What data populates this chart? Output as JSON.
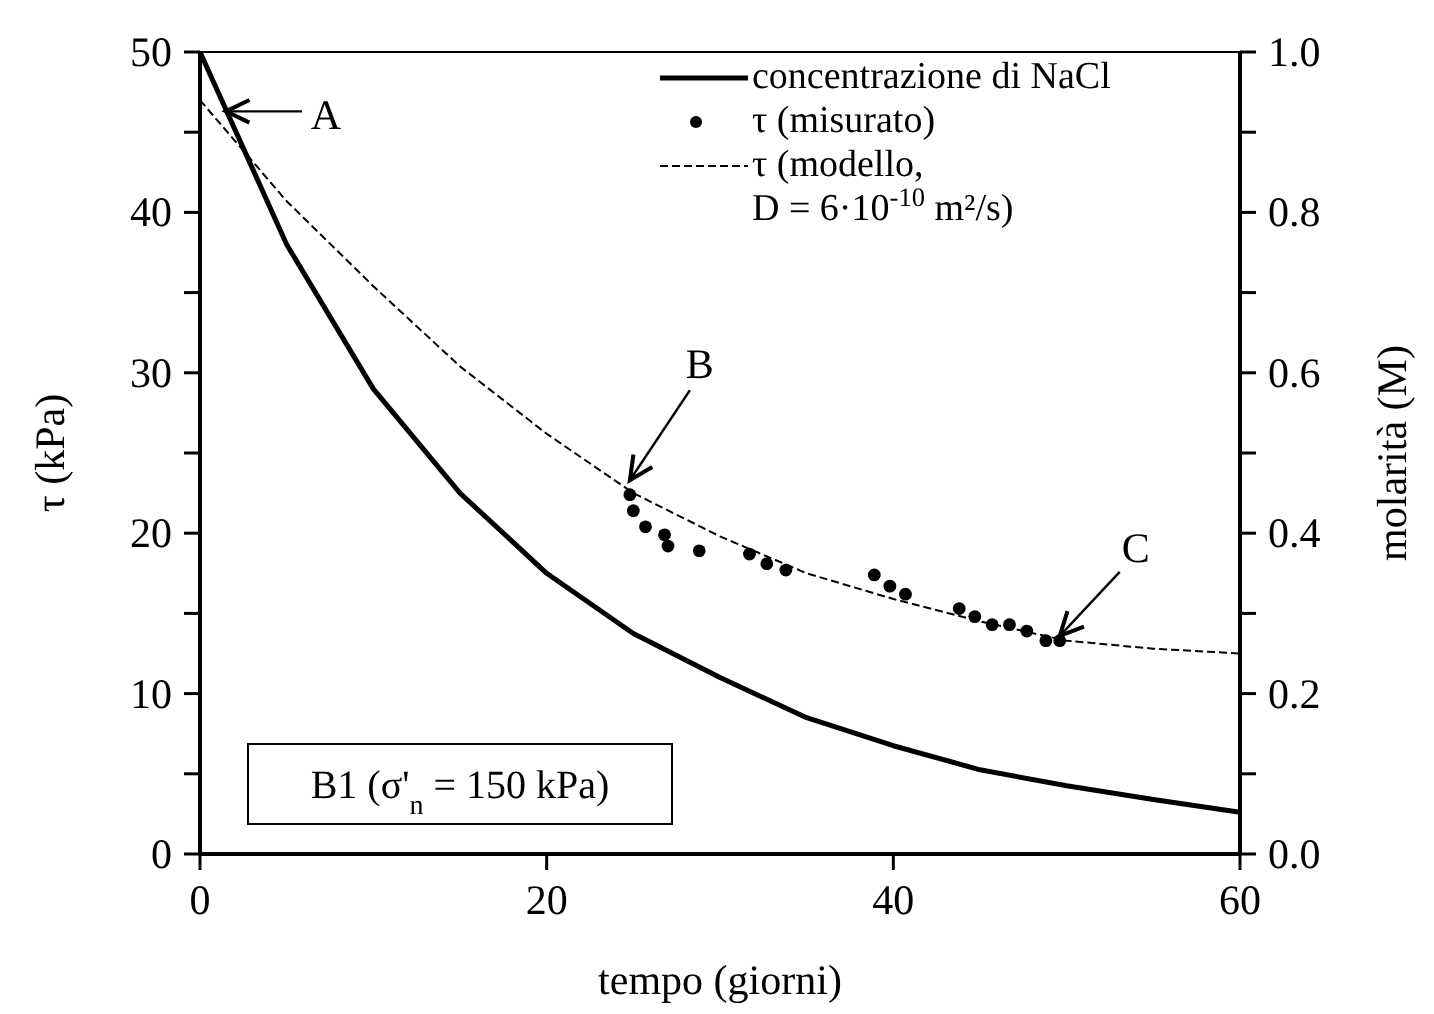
{
  "chart_data": {
    "type": "line",
    "xlabel": "tempo (giorni)",
    "ylabel": "τ (kPa)",
    "y2label": "molarità (M)",
    "xlim": [
      0,
      60
    ],
    "xticks": [
      0,
      20,
      40,
      60
    ],
    "ylim": [
      0,
      50
    ],
    "yticks": [
      0,
      {
        "value": 5,
        "label": null
      },
      10,
      {
        "value": 15,
        "label": null
      },
      20,
      {
        "value": 25,
        "label": null
      },
      30,
      {
        "value": 35,
        "label": null
      },
      40,
      {
        "value": 45,
        "label": null
      },
      50
    ],
    "y2lim": [
      0,
      1
    ],
    "y2ticks": [
      {
        "value": 0,
        "label": "0.0"
      },
      {
        "value": 0.1,
        "label": null
      },
      {
        "value": 0.2,
        "label": "0.2"
      },
      {
        "value": 0.3,
        "label": null
      },
      {
        "value": 0.4,
        "label": "0.4"
      },
      {
        "value": 0.5,
        "label": null
      },
      {
        "value": 0.6,
        "label": "0.6"
      },
      {
        "value": 0.7,
        "label": null
      },
      {
        "value": 0.8,
        "label": "0.8"
      },
      {
        "value": 0.9,
        "label": null
      },
      {
        "value": 1,
        "label": "1.0"
      }
    ],
    "legend": "top right",
    "grid": false,
    "series": [
      {
        "name": "concentrazione di NaCl",
        "axis": "y2",
        "color": "#000000",
        "line_style": "solid",
        "marker": "none",
        "x": [
          0,
          5,
          10,
          15,
          20,
          25,
          30,
          35,
          40,
          45,
          50,
          55,
          60
        ],
        "values": [
          1.0,
          0.76,
          0.58,
          0.45,
          0.35,
          0.275,
          0.22,
          0.17,
          0.135,
          0.105,
          0.085,
          0.068,
          0.052
        ]
      },
      {
        "name": "τ (misurato)",
        "type": "scatter",
        "color": "#000000",
        "marker": "circle",
        "x": [
          24.8,
          25.0,
          25.7,
          26.8,
          27.0,
          28.8,
          31.7,
          32.7,
          33.8,
          38.9,
          39.8,
          40.7,
          43.8,
          44.7,
          45.7,
          46.7,
          47.7,
          48.8,
          49.6
        ],
        "values": [
          22.4,
          21.4,
          20.4,
          19.9,
          19.2,
          18.9,
          18.7,
          18.1,
          17.7,
          17.4,
          16.7,
          16.2,
          15.3,
          14.8,
          14.3,
          14.3,
          13.9,
          13.3,
          13.3
        ]
      },
      {
        "name": "τ (modello,\nD = 6·10$^{-10}$ m²/s)",
        "color": "#000000",
        "line_style": "dashed",
        "marker": "none",
        "x": [
          0,
          5,
          10,
          15,
          20,
          25,
          30,
          35,
          40,
          45,
          50,
          55,
          60
        ],
        "values": [
          47,
          40.7,
          35.4,
          30.4,
          26.2,
          22.5,
          19.8,
          17.5,
          15.9,
          14.5,
          13.3,
          12.8,
          12.5
        ]
      }
    ],
    "annotations": [
      {
        "text": "A",
        "x": 1.5,
        "y": 46.3
      },
      {
        "text": "B",
        "x": 24.8,
        "y": 23.3
      },
      {
        "text": "C",
        "x": 49.6,
        "y": 13.6
      },
      "B1 (σ'$_{n}$ = 150 kPa)"
    ]
  }
}
